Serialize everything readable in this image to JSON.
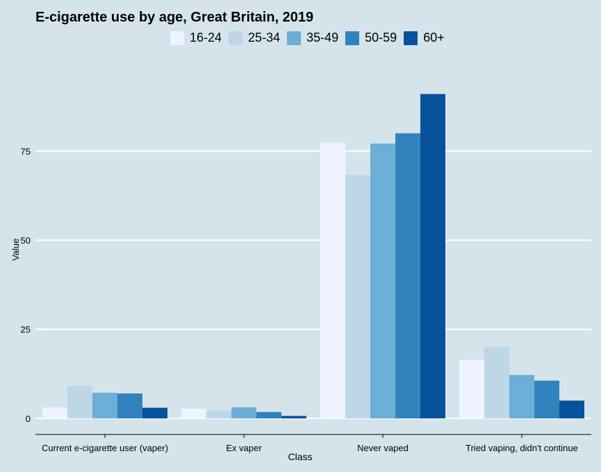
{
  "chart_data": {
    "type": "bar",
    "title": "E-cigarette use by age, Great Britain, 2019",
    "xlabel": "Class",
    "ylabel": "Value",
    "categories": [
      "Current e-cigarette user (vaper)",
      "Ex vaper",
      "Never vaped",
      "Tried vaping, didn't continue"
    ],
    "series": [
      {
        "name": "16-24",
        "color": "#eff3ff",
        "values": [
          3.1,
          2.7,
          77.3,
          16.4
        ]
      },
      {
        "name": "25-34",
        "color": "#bdd7e7",
        "values": [
          9.1,
          2.2,
          68.3,
          20.1
        ]
      },
      {
        "name": "35-49",
        "color": "#6baed6",
        "values": [
          7.2,
          3.1,
          77.1,
          12.2
        ]
      },
      {
        "name": "50-59",
        "color": "#3182bd",
        "values": [
          7.0,
          1.8,
          80.0,
          10.6
        ]
      },
      {
        "name": "60+",
        "color": "#08519c",
        "values": [
          3.0,
          0.7,
          91.0,
          5.0
        ]
      }
    ],
    "yticks": [
      0,
      25,
      50,
      75
    ],
    "ylim": [
      -4.5,
      101
    ],
    "grid": true,
    "legend_position": "top"
  }
}
